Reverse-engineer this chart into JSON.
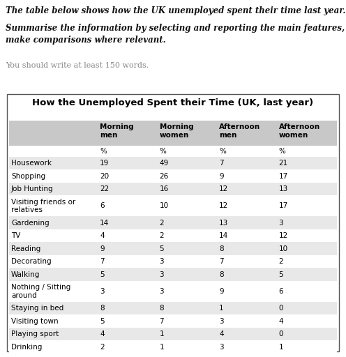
{
  "title": "How the Unemployed Spent their Time (UK, last year)",
  "prompt_line1": "The table below shows how the UK unemployed spent their time last year.",
  "prompt_line2": "Summarise the information by selecting and reporting the main features, and\nmake comparisons where relevant.",
  "prompt_line3": "You should write at least 150 words.",
  "columns": [
    "",
    "Morning\nmen",
    "Morning\nwomen",
    "Afternoon\nmen",
    "Afternoon\nwomen"
  ],
  "col_units": [
    "",
    "%",
    "%",
    "%",
    "%"
  ],
  "rows": [
    [
      "Housework",
      19,
      49,
      7,
      21
    ],
    [
      "Shopping",
      20,
      26,
      9,
      17
    ],
    [
      "Job Hunting",
      22,
      16,
      12,
      13
    ],
    [
      "Visiting friends or\nrelatives",
      6,
      10,
      12,
      17
    ],
    [
      "Gardening",
      14,
      2,
      13,
      3
    ],
    [
      "TV",
      4,
      2,
      14,
      12
    ],
    [
      "Reading",
      9,
      5,
      8,
      10
    ],
    [
      "Decorating",
      7,
      3,
      7,
      2
    ],
    [
      "Walking",
      5,
      3,
      8,
      5
    ],
    [
      "Nothing / Sitting\naround",
      3,
      3,
      9,
      6
    ],
    [
      "Staying in bed",
      8,
      8,
      1,
      0
    ],
    [
      "Visiting town",
      5,
      7,
      3,
      4
    ],
    [
      "Playing sport",
      4,
      1,
      4,
      0
    ],
    [
      "Drinking",
      2,
      1,
      3,
      1
    ]
  ],
  "header_bg": "#c8c8c8",
  "odd_row_bg": "#e8e8e8",
  "even_row_bg": "#ffffff",
  "border_color": "#555555",
  "text_color": "#000000",
  "header_text_color": "#000000",
  "table_title_fontsize": 9.5,
  "prompt_fontsize1": 8.5,
  "prompt_fontsize2": 8.5,
  "prompt_fontsize3": 8.0,
  "cell_fontsize": 7.5,
  "header_fontsize": 7.5
}
